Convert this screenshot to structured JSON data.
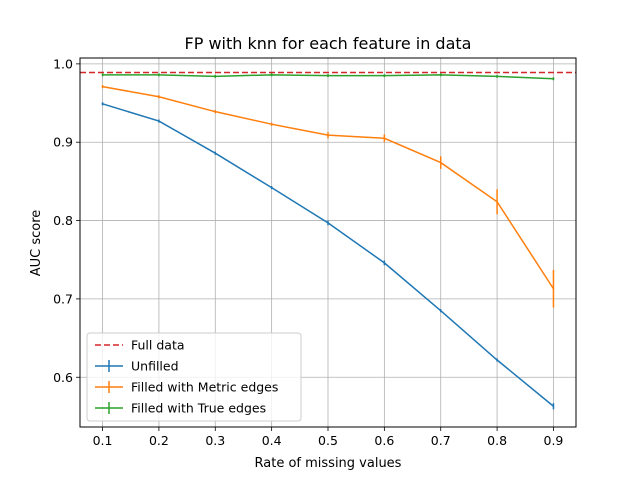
{
  "chart_data": {
    "type": "line",
    "title": "FP with knn for each feature in data",
    "xlabel": "Rate of missing values",
    "ylabel": "AUC score",
    "x": [
      0.1,
      0.2,
      0.3,
      0.4,
      0.5,
      0.6,
      0.7,
      0.8,
      0.9
    ],
    "xticks": [
      "0.1",
      "0.2",
      "0.3",
      "0.4",
      "0.5",
      "0.6",
      "0.7",
      "0.8",
      "0.9"
    ],
    "yticks": [
      "0.6",
      "0.7",
      "0.8",
      "0.9",
      "1.0"
    ],
    "xlim": [
      0.06,
      0.94
    ],
    "ylim": [
      0.5365,
      1.0075
    ],
    "grid": true,
    "legend_position": "lower-left",
    "reference_line": {
      "name": "Full data",
      "value": 0.989,
      "color": "#d62728",
      "style": "dashed"
    },
    "series": [
      {
        "name": "Unfilled",
        "color": "#1f77b4",
        "values": [
          0.949,
          0.927,
          0.886,
          0.842,
          0.797,
          0.746,
          0.685,
          0.622,
          0.563
        ],
        "errors": [
          0.002,
          0.002,
          0.002,
          0.002,
          0.003,
          0.003,
          0.002,
          0.002,
          0.004
        ]
      },
      {
        "name": "Filled with Metric edges",
        "color": "#ff7f0e",
        "values": [
          0.971,
          0.958,
          0.939,
          0.923,
          0.909,
          0.905,
          0.874,
          0.824,
          0.713
        ],
        "errors": [
          0.002,
          0.002,
          0.002,
          0.002,
          0.004,
          0.005,
          0.008,
          0.016,
          0.024
        ]
      },
      {
        "name": "Filled with True edges",
        "color": "#2ca02c",
        "values": [
          0.986,
          0.986,
          0.984,
          0.986,
          0.985,
          0.985,
          0.986,
          0.984,
          0.981
        ],
        "errors": [
          0.001,
          0.001,
          0.001,
          0.001,
          0.001,
          0.001,
          0.001,
          0.001,
          0.001
        ]
      }
    ]
  }
}
